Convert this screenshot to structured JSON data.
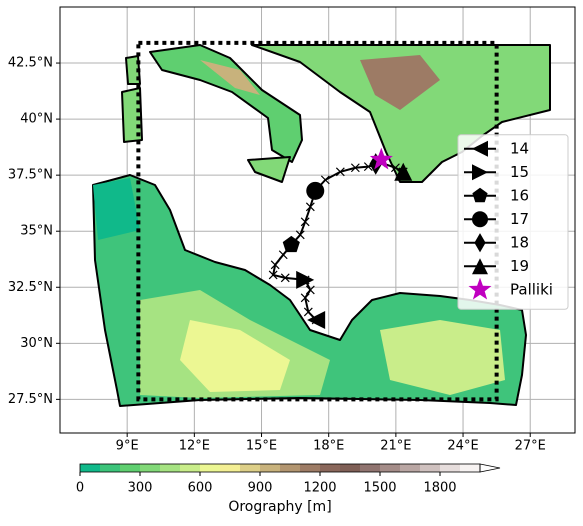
{
  "chart_data": {
    "type": "track",
    "xlim": [
      6,
      29
    ],
    "ylim": [
      26,
      45
    ],
    "xticks": [
      {
        "value": 9,
        "label": "9°E"
      },
      {
        "value": 12,
        "label": "12°E"
      },
      {
        "value": 15,
        "label": "15°E"
      },
      {
        "value": 18,
        "label": "18°E"
      },
      {
        "value": 21,
        "label": "21°E"
      },
      {
        "value": 24,
        "label": "24°E"
      },
      {
        "value": 27,
        "label": "27°E"
      }
    ],
    "yticks": [
      {
        "value": 27.5,
        "label": "27.5°N"
      },
      {
        "value": 30,
        "label": "30°N"
      },
      {
        "value": 32.5,
        "label": "32.5°N"
      },
      {
        "value": 35,
        "label": "35°N"
      },
      {
        "value": 37.5,
        "label": "37.5°N"
      },
      {
        "value": 40,
        "label": "40°N"
      },
      {
        "value": 42.5,
        "label": "42.5°N"
      }
    ],
    "grid": true,
    "domain_box": {
      "x": [
        9.5,
        25.5
      ],
      "y": [
        27.5,
        43.4
      ]
    },
    "track": {
      "color": "#000000",
      "x": [
        17.44,
        17.09,
        16.95,
        17.18,
        16.95,
        16.06,
        15.52,
        15.61,
        15.97,
        16.33,
        16.73,
        16.95,
        17.18,
        17.4,
        17.85,
        18.52,
        19.19,
        19.77,
        20.35,
        20.98,
        21.33
      ],
      "y": [
        31.04,
        31.4,
        32.03,
        32.38,
        32.83,
        32.92,
        33.05,
        33.5,
        33.95,
        34.39,
        34.84,
        35.42,
        36.09,
        36.8,
        37.29,
        37.65,
        37.83,
        37.88,
        38.05,
        37.83,
        37.65
      ]
    },
    "series": [
      {
        "name": "14",
        "marker": "triangle-left",
        "color": "#000000",
        "x": [
          17.44
        ],
        "y": [
          31.04
        ]
      },
      {
        "name": "15",
        "marker": "triangle-right",
        "color": "#000000",
        "x": [
          16.95
        ],
        "y": [
          32.83
        ]
      },
      {
        "name": "16",
        "marker": "pentagon",
        "color": "#000000",
        "x": [
          16.33
        ],
        "y": [
          34.39
        ]
      },
      {
        "name": "17",
        "marker": "circle",
        "color": "#000000",
        "x": [
          17.4
        ],
        "y": [
          36.8
        ]
      },
      {
        "name": "18",
        "marker": "diamond",
        "color": "#000000",
        "x": [
          20.1
        ],
        "y": [
          38.0
        ]
      },
      {
        "name": "19",
        "marker": "triangle-up",
        "color": "#000000",
        "x": [
          21.33
        ],
        "y": [
          37.65
        ]
      },
      {
        "name": "Palliki",
        "marker": "star",
        "color": "#c000c0",
        "x": [
          20.35
        ],
        "y": [
          38.19
        ]
      }
    ],
    "legend": "center right",
    "colorbar": {
      "label": "Orography [m]",
      "lim": [
        0,
        2000
      ],
      "ticks": [
        0,
        300,
        600,
        900,
        1200,
        1500,
        1800
      ],
      "colors": [
        "#10b98a",
        "#3cc47a",
        "#5fcf70",
        "#82d978",
        "#a6e382",
        "#c9ed8a",
        "#ecf793",
        "#f4ef94",
        "#ddcf88",
        "#c8b27c",
        "#b29570",
        "#9d7b65",
        "#8a675b",
        "#7f5f56",
        "#907470",
        "#a48c88",
        "#b9a6a3",
        "#cfc1bf",
        "#e6dddc",
        "#f7f3f2"
      ]
    }
  }
}
